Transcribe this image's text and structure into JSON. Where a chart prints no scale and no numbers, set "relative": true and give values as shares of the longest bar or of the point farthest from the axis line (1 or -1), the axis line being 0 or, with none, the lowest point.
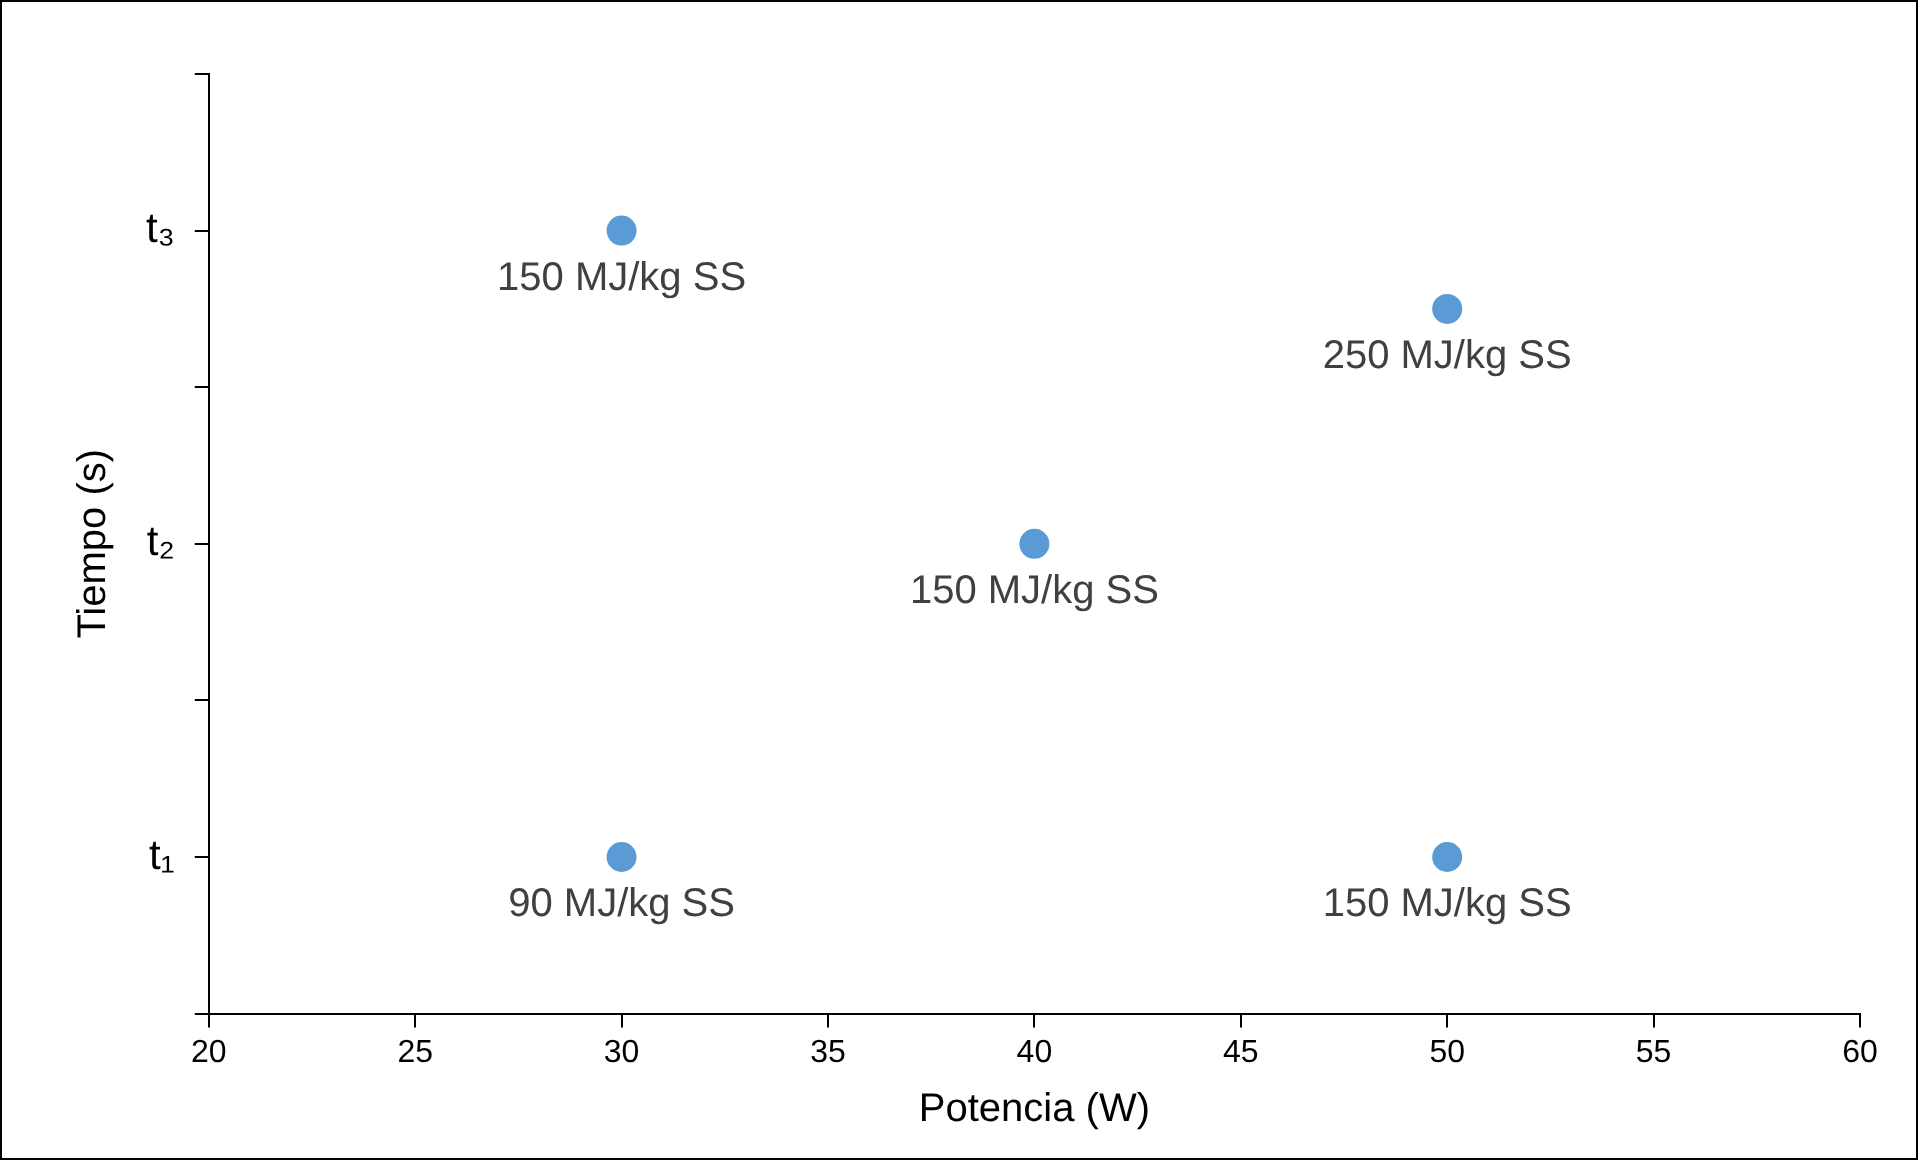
{
  "chart_data": {
    "type": "scatter",
    "xlabel": "Potencia (W)",
    "ylabel": "Tiempo (s)",
    "relative": true,
    "x": [
      30,
      50,
      40,
      30,
      50
    ],
    "series": [
      {
        "color": "#5b9bd5",
        "values": [
          1,
          0.9,
          0.6,
          0.2,
          0.2
        ]
      }
    ],
    "annotations": [
      {
        "text": "150 MJ/kg SS",
        "x": 30,
        "y": 1
      },
      {
        "text": "250 MJ/kg SS",
        "x": 50,
        "y": 0.9
      },
      {
        "text": "150 MJ/kg SS",
        "x": 40,
        "y": 0.6
      },
      {
        "text": "90 MJ/kg SS",
        "x": 30,
        "y": 0.2
      },
      {
        "text": "150 MJ/kg SS",
        "x": 50,
        "y": 0.2
      }
    ],
    "xlim": [
      20,
      60
    ],
    "xticks": [
      20,
      25,
      30,
      35,
      40,
      45,
      50,
      55,
      60
    ],
    "ylim": [
      0,
      1.2
    ],
    "y_categories": [
      null,
      "t₃",
      null,
      "t₂",
      null,
      "t₁",
      null
    ],
    "grid": false,
    "legend": false,
    "marker": "circle"
  }
}
